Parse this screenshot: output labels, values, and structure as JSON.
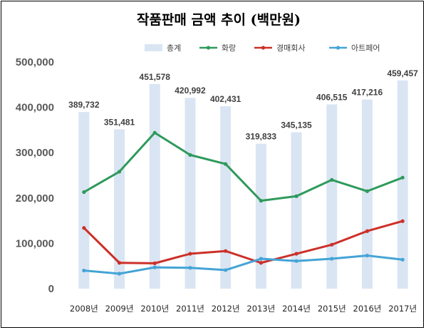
{
  "chart_data": {
    "type": "bar+line",
    "title": "작품판매 금액 추이 (백만원)",
    "categories": [
      "2008년",
      "2009년",
      "2010년",
      "2011년",
      "2012년",
      "2013년",
      "2014년",
      "2015년",
      "2016년",
      "2017년"
    ],
    "ylim": [
      0,
      500000
    ],
    "yticks": [
      0,
      100000,
      200000,
      300000,
      400000,
      500000
    ],
    "ytick_labels": [
      "0",
      "100,000",
      "200,000",
      "300,000",
      "400,000",
      "500,000"
    ],
    "legend_position": "top-right",
    "grid": false,
    "bar_series": {
      "name": "총계",
      "color": "#dae5f3",
      "values": [
        389732,
        351481,
        451578,
        420992,
        402431,
        319833,
        345135,
        406515,
        417216,
        459457
      ],
      "labels": [
        "389,732",
        "351,481",
        "451,578",
        "420,992",
        "402,431",
        "319,833",
        "345,135",
        "406,515",
        "417,216",
        "459,457"
      ]
    },
    "line_series": [
      {
        "name": "화랑",
        "color": "#2e9a5b",
        "values": [
          213000,
          258000,
          344000,
          295000,
          275000,
          194000,
          204000,
          240000,
          215000,
          245000
        ]
      },
      {
        "name": "경매회사",
        "color": "#cc3028",
        "values": [
          134000,
          57000,
          56000,
          77000,
          83000,
          57000,
          77000,
          97000,
          127000,
          149000
        ]
      },
      {
        "name": "아트페어",
        "color": "#43a4d6",
        "values": [
          40000,
          33000,
          47000,
          46000,
          41000,
          66000,
          61000,
          66000,
          73000,
          64000
        ]
      }
    ]
  }
}
